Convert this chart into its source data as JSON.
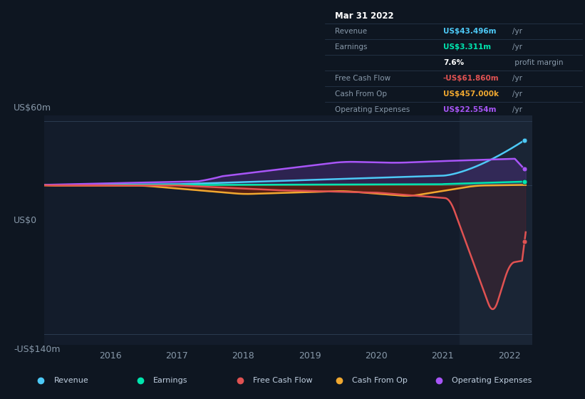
{
  "bg_color": "#0e1621",
  "plot_bg_color": "#131c2b",
  "highlight_bg": "#1a2535",
  "ylabel_top": "US$60m",
  "ylabel_zero": "US$0",
  "ylabel_bot": "-US$140m",
  "xlim": [
    2015.0,
    2022.35
  ],
  "ylim": [
    -150,
    65
  ],
  "xticks": [
    2016,
    2017,
    2018,
    2019,
    2020,
    2021,
    2022
  ],
  "highlight_x_start": 2021.25,
  "rev_color": "#4dc9f6",
  "earn_color": "#00e5ae",
  "fcf_color": "#e05252",
  "cashop_color": "#f0a830",
  "opex_color": "#a855f7",
  "legend": [
    {
      "label": "Revenue",
      "color": "#4dc9f6"
    },
    {
      "label": "Earnings",
      "color": "#00e5ae"
    },
    {
      "label": "Free Cash Flow",
      "color": "#e05252"
    },
    {
      "label": "Cash From Op",
      "color": "#f0a830"
    },
    {
      "label": "Operating Expenses",
      "color": "#a855f7"
    }
  ],
  "tooltip": {
    "date": "Mar 31 2022",
    "rows": [
      {
        "label": "Revenue",
        "value": "US$43.496m",
        "suffix": "/yr",
        "color": "#4dc9f6"
      },
      {
        "label": "Earnings",
        "value": "US$3.311m",
        "suffix": "/yr",
        "color": "#00e5ae"
      },
      {
        "label": "",
        "value": "7.6%",
        "suffix": " profit margin",
        "color": "#ffffff"
      },
      {
        "label": "Free Cash Flow",
        "value": "-US$61.860m",
        "suffix": "/yr",
        "color": "#e05252"
      },
      {
        "label": "Cash From Op",
        "value": "US$457.000k",
        "suffix": "/yr",
        "color": "#f0a830"
      },
      {
        "label": "Operating Expenses",
        "value": "US$22.554m",
        "suffix": "/yr",
        "color": "#a855f7"
      }
    ]
  }
}
